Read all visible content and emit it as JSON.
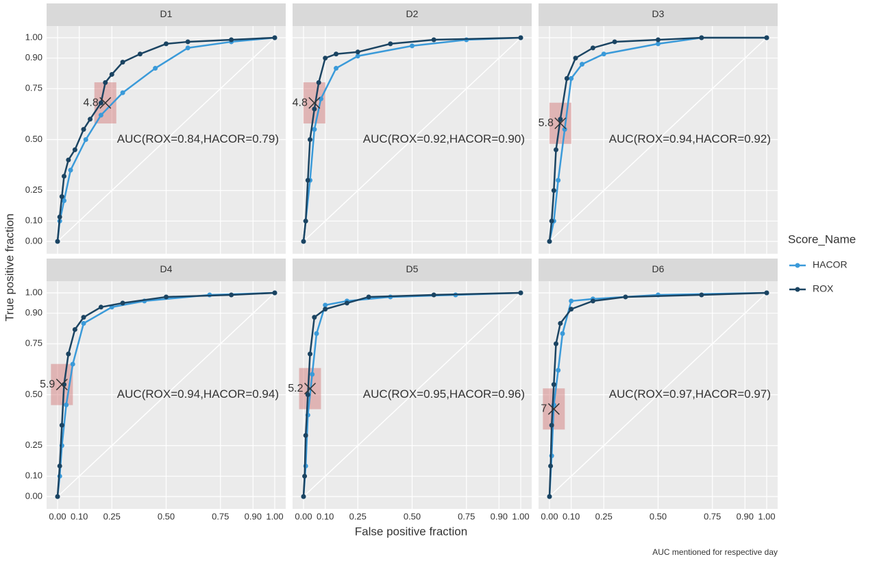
{
  "y_label": "True positive fraction",
  "x_label": "False positive fraction",
  "legend_title": "Score_Name",
  "caption": "AUC mentioned for respective day",
  "chart_data": [
    {
      "type": "line",
      "title": "D1",
      "annotation": "AUC(ROX=0.84,HACOR=0.79)",
      "xlim": [
        0,
        1
      ],
      "ylim": [
        0,
        1
      ],
      "grid": true,
      "xticks": [
        {
          "value": 0,
          "label": "0.00"
        },
        {
          "value": 0.1,
          "label": "0.10"
        },
        {
          "value": 0.25,
          "label": "0.25"
        },
        {
          "value": 0.5,
          "label": "0.50"
        },
        {
          "value": 0.75,
          "label": "0.75"
        },
        {
          "value": 0.9,
          "label": "0.90"
        },
        {
          "value": 1,
          "label": "1.00"
        }
      ],
      "yticks": [
        {
          "value": 0,
          "label": "0.00"
        },
        {
          "value": 0.1,
          "label": "0.10"
        },
        {
          "value": 0.25,
          "label": "0.25"
        },
        {
          "value": 0.5,
          "label": "0.50"
        },
        {
          "value": 0.75,
          "label": "0.75"
        },
        {
          "value": 0.9,
          "label": "0.90"
        },
        {
          "value": 1,
          "label": "1.00"
        }
      ],
      "cutoff": {
        "label": "4.8",
        "x": 0.22,
        "y": 0.68
      },
      "series": [
        {
          "name": "HACOR",
          "color": "#3a9ad9",
          "x": [
            0,
            0.01,
            0.03,
            0.06,
            0.13,
            0.2,
            0.3,
            0.45,
            0.6,
            0.8,
            1
          ],
          "values": [
            0,
            0.1,
            0.2,
            0.35,
            0.5,
            0.62,
            0.73,
            0.85,
            0.95,
            0.98,
            1
          ]
        },
        {
          "name": "ROX",
          "color": "#1b4462",
          "x": [
            0,
            0.01,
            0.02,
            0.03,
            0.05,
            0.08,
            0.12,
            0.15,
            0.2,
            0.22,
            0.25,
            0.3,
            0.38,
            0.5,
            0.6,
            0.8,
            1
          ],
          "values": [
            0,
            0.12,
            0.22,
            0.32,
            0.4,
            0.45,
            0.55,
            0.6,
            0.68,
            0.78,
            0.82,
            0.88,
            0.92,
            0.97,
            0.98,
            0.99,
            1
          ]
        }
      ]
    },
    {
      "type": "line",
      "title": "D2",
      "annotation": "AUC(ROX=0.92,HACOR=0.90)",
      "xlim": [
        0,
        1
      ],
      "ylim": [
        0,
        1
      ],
      "grid": true,
      "xticks": [
        {
          "value": 0,
          "label": "0.00"
        },
        {
          "value": 0.1,
          "label": "0.10"
        },
        {
          "value": 0.25,
          "label": "0.25"
        },
        {
          "value": 0.5,
          "label": "0.50"
        },
        {
          "value": 0.75,
          "label": "0.75"
        },
        {
          "value": 0.9,
          "label": "0.90"
        },
        {
          "value": 1,
          "label": "1.00"
        }
      ],
      "yticks": [
        {
          "value": 0,
          "label": "0.00"
        },
        {
          "value": 0.1,
          "label": "0.10"
        },
        {
          "value": 0.25,
          "label": "0.25"
        },
        {
          "value": 0.5,
          "label": "0.50"
        },
        {
          "value": 0.75,
          "label": "0.75"
        },
        {
          "value": 0.9,
          "label": "0.90"
        },
        {
          "value": 1,
          "label": "1.00"
        }
      ],
      "cutoff": {
        "label": "4.8",
        "x": 0.05,
        "y": 0.68
      },
      "series": [
        {
          "name": "HACOR",
          "color": "#3a9ad9",
          "x": [
            0,
            0.01,
            0.03,
            0.05,
            0.08,
            0.15,
            0.25,
            0.5,
            0.75,
            1
          ],
          "values": [
            0,
            0.1,
            0.3,
            0.55,
            0.7,
            0.85,
            0.91,
            0.96,
            0.99,
            1
          ]
        },
        {
          "name": "ROX",
          "color": "#1b4462",
          "x": [
            0,
            0.01,
            0.02,
            0.03,
            0.05,
            0.07,
            0.1,
            0.15,
            0.25,
            0.4,
            0.6,
            1
          ],
          "values": [
            0,
            0.1,
            0.3,
            0.5,
            0.65,
            0.78,
            0.9,
            0.92,
            0.93,
            0.97,
            0.99,
            1
          ]
        }
      ]
    },
    {
      "type": "line",
      "title": "D3",
      "annotation": "AUC(ROX=0.94,HACOR=0.92)",
      "xlim": [
        0,
        1
      ],
      "ylim": [
        0,
        1
      ],
      "grid": true,
      "xticks": [
        {
          "value": 0,
          "label": "0.00"
        },
        {
          "value": 0.1,
          "label": "0.10"
        },
        {
          "value": 0.25,
          "label": "0.25"
        },
        {
          "value": 0.5,
          "label": "0.50"
        },
        {
          "value": 0.75,
          "label": "0.75"
        },
        {
          "value": 0.9,
          "label": "0.90"
        },
        {
          "value": 1,
          "label": "1.00"
        }
      ],
      "yticks": [
        {
          "value": 0,
          "label": "0.00"
        },
        {
          "value": 0.1,
          "label": "0.10"
        },
        {
          "value": 0.25,
          "label": "0.25"
        },
        {
          "value": 0.5,
          "label": "0.50"
        },
        {
          "value": 0.75,
          "label": "0.75"
        },
        {
          "value": 0.9,
          "label": "0.90"
        },
        {
          "value": 1,
          "label": "1.00"
        }
      ],
      "cutoff": {
        "label": "5.8",
        "x": 0.05,
        "y": 0.58
      },
      "series": [
        {
          "name": "HACOR",
          "color": "#3a9ad9",
          "x": [
            0,
            0.02,
            0.04,
            0.07,
            0.1,
            0.15,
            0.25,
            0.5,
            0.7,
            1
          ],
          "values": [
            0,
            0.1,
            0.3,
            0.55,
            0.8,
            0.87,
            0.92,
            0.97,
            1,
            1
          ]
        },
        {
          "name": "ROX",
          "color": "#1b4462",
          "x": [
            0,
            0.01,
            0.02,
            0.03,
            0.05,
            0.08,
            0.12,
            0.2,
            0.3,
            0.5,
            0.7,
            1
          ],
          "values": [
            0,
            0.1,
            0.25,
            0.45,
            0.6,
            0.8,
            0.9,
            0.95,
            0.98,
            0.99,
            1,
            1
          ]
        }
      ]
    },
    {
      "type": "line",
      "title": "D4",
      "annotation": "AUC(ROX=0.94,HACOR=0.94)",
      "xlim": [
        0,
        1
      ],
      "ylim": [
        0,
        1
      ],
      "grid": true,
      "xticks": [
        {
          "value": 0,
          "label": "0.00"
        },
        {
          "value": 0.1,
          "label": "0.10"
        },
        {
          "value": 0.25,
          "label": "0.25"
        },
        {
          "value": 0.5,
          "label": "0.50"
        },
        {
          "value": 0.75,
          "label": "0.75"
        },
        {
          "value": 0.9,
          "label": "0.90"
        },
        {
          "value": 1,
          "label": "1.00"
        }
      ],
      "yticks": [
        {
          "value": 0,
          "label": "0.00"
        },
        {
          "value": 0.1,
          "label": "0.10"
        },
        {
          "value": 0.25,
          "label": "0.25"
        },
        {
          "value": 0.5,
          "label": "0.50"
        },
        {
          "value": 0.75,
          "label": "0.75"
        },
        {
          "value": 0.9,
          "label": "0.90"
        },
        {
          "value": 1,
          "label": "1.00"
        }
      ],
      "cutoff": {
        "label": "5.9",
        "x": 0.02,
        "y": 0.55
      },
      "series": [
        {
          "name": "HACOR",
          "color": "#3a9ad9",
          "x": [
            0,
            0.01,
            0.02,
            0.04,
            0.07,
            0.12,
            0.25,
            0.4,
            0.7,
            1
          ],
          "values": [
            0,
            0.1,
            0.25,
            0.45,
            0.65,
            0.85,
            0.93,
            0.96,
            0.99,
            1
          ]
        },
        {
          "name": "ROX",
          "color": "#1b4462",
          "x": [
            0,
            0.01,
            0.02,
            0.03,
            0.05,
            0.08,
            0.12,
            0.2,
            0.3,
            0.5,
            0.8,
            1
          ],
          "values": [
            0,
            0.15,
            0.35,
            0.55,
            0.7,
            0.82,
            0.88,
            0.93,
            0.95,
            0.98,
            0.99,
            1
          ]
        }
      ]
    },
    {
      "type": "line",
      "title": "D5",
      "annotation": "AUC(ROX=0.95,HACOR=0.96)",
      "xlim": [
        0,
        1
      ],
      "ylim": [
        0,
        1
      ],
      "grid": true,
      "xticks": [
        {
          "value": 0,
          "label": "0.00"
        },
        {
          "value": 0.1,
          "label": "0.10"
        },
        {
          "value": 0.25,
          "label": "0.25"
        },
        {
          "value": 0.5,
          "label": "0.50"
        },
        {
          "value": 0.75,
          "label": "0.75"
        },
        {
          "value": 0.9,
          "label": "0.90"
        },
        {
          "value": 1,
          "label": "1.00"
        }
      ],
      "yticks": [
        {
          "value": 0,
          "label": "0.00"
        },
        {
          "value": 0.1,
          "label": "0.10"
        },
        {
          "value": 0.25,
          "label": "0.25"
        },
        {
          "value": 0.5,
          "label": "0.50"
        },
        {
          "value": 0.75,
          "label": "0.75"
        },
        {
          "value": 0.9,
          "label": "0.90"
        },
        {
          "value": 1,
          "label": "1.00"
        }
      ],
      "cutoff": {
        "label": "5.2",
        "x": 0.03,
        "y": 0.53
      },
      "series": [
        {
          "name": "HACOR",
          "color": "#3a9ad9",
          "x": [
            0,
            0.01,
            0.02,
            0.04,
            0.06,
            0.1,
            0.2,
            0.4,
            0.7,
            1
          ],
          "values": [
            0,
            0.15,
            0.4,
            0.6,
            0.8,
            0.94,
            0.96,
            0.98,
            0.99,
            1
          ]
        },
        {
          "name": "ROX",
          "color": "#1b4462",
          "x": [
            0,
            0.005,
            0.01,
            0.02,
            0.03,
            0.05,
            0.1,
            0.2,
            0.3,
            0.6,
            1
          ],
          "values": [
            0,
            0.1,
            0.3,
            0.5,
            0.7,
            0.88,
            0.92,
            0.95,
            0.98,
            0.99,
            1
          ]
        }
      ]
    },
    {
      "type": "line",
      "title": "D6",
      "annotation": "AUC(ROX=0.97,HACOR=0.97)",
      "xlim": [
        0,
        1
      ],
      "ylim": [
        0,
        1
      ],
      "grid": true,
      "xticks": [
        {
          "value": 0,
          "label": "0.00"
        },
        {
          "value": 0.1,
          "label": "0.10"
        },
        {
          "value": 0.25,
          "label": "0.25"
        },
        {
          "value": 0.5,
          "label": "0.50"
        },
        {
          "value": 0.75,
          "label": "0.75"
        },
        {
          "value": 0.9,
          "label": "0.90"
        },
        {
          "value": 1,
          "label": "1.00"
        }
      ],
      "yticks": [
        {
          "value": 0,
          "label": "0.00"
        },
        {
          "value": 0.1,
          "label": "0.10"
        },
        {
          "value": 0.25,
          "label": "0.25"
        },
        {
          "value": 0.5,
          "label": "0.50"
        },
        {
          "value": 0.75,
          "label": "0.75"
        },
        {
          "value": 0.9,
          "label": "0.90"
        },
        {
          "value": 1,
          "label": "1.00"
        }
      ],
      "cutoff": {
        "label": "7",
        "x": 0.02,
        "y": 0.43
      },
      "series": [
        {
          "name": "HACOR",
          "color": "#3a9ad9",
          "x": [
            0,
            0.01,
            0.02,
            0.04,
            0.06,
            0.1,
            0.2,
            0.5,
            1
          ],
          "values": [
            0,
            0.2,
            0.45,
            0.62,
            0.8,
            0.96,
            0.97,
            0.99,
            1
          ]
        },
        {
          "name": "ROX",
          "color": "#1b4462",
          "x": [
            0,
            0.005,
            0.01,
            0.02,
            0.03,
            0.05,
            0.1,
            0.2,
            0.35,
            0.7,
            1
          ],
          "values": [
            0,
            0.15,
            0.35,
            0.55,
            0.75,
            0.85,
            0.92,
            0.96,
            0.98,
            0.99,
            1
          ]
        }
      ]
    }
  ]
}
